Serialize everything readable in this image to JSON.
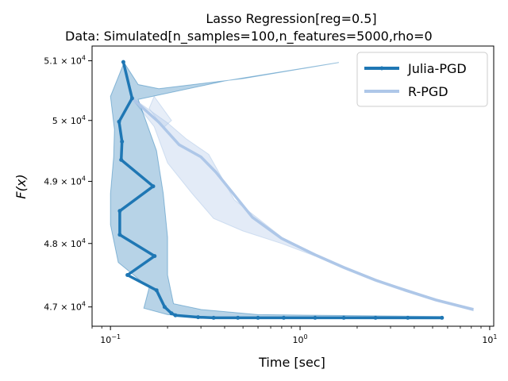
{
  "chart_data": {
    "type": "line",
    "title": "Lasso Regression[reg=0.5]",
    "subtitle": "Data: Simulated[n_samples=100,n_features=5000,rho=0",
    "xlabel": "Time [sec]",
    "ylabel": "F(x)",
    "xscale": "log",
    "yscale": "log",
    "xlim": [
      0.08,
      10.5
    ],
    "ylim": [
      46700,
      51250
    ],
    "x_ticks": [
      {
        "value": 0.1,
        "base": "10",
        "exp": "−1"
      },
      {
        "value": 1,
        "base": "10",
        "exp": "0"
      },
      {
        "value": 10,
        "base": "10",
        "exp": "1"
      }
    ],
    "y_ticks": [
      {
        "value": 47000,
        "mant": "4.7",
        "exp": "4"
      },
      {
        "value": 48000,
        "mant": "4.8",
        "exp": "4"
      },
      {
        "value": 49000,
        "mant": "4.9",
        "exp": "4"
      },
      {
        "value": 50000,
        "mant": "5",
        "exp": "4"
      },
      {
        "value": 51000,
        "mant": "5.1",
        "exp": "4"
      }
    ],
    "legend_position": "top-right",
    "grid": false,
    "series": [
      {
        "name": "Julia-PGD",
        "color": "#1f77b4",
        "x": [
          0.117,
          0.13,
          0.111,
          0.115,
          0.114,
          0.168,
          0.112,
          0.112,
          0.171,
          0.123,
          0.175,
          0.193,
          0.21,
          0.22,
          0.29,
          0.35,
          0.47,
          0.6,
          0.82,
          1.2,
          1.7,
          2.5,
          3.7,
          5.6
        ],
        "y": [
          50980,
          50370,
          49980,
          49650,
          49350,
          48920,
          48520,
          48140,
          47800,
          47500,
          47260,
          47000,
          46900,
          46870,
          46840,
          46830,
          46830,
          46830,
          46830,
          46830,
          46830,
          46830,
          46830,
          46830
        ],
        "band_upper": [
          {
            "x": 0.118,
            "y": 50970
          },
          {
            "x": 0.14,
            "y": 50600
          },
          {
            "x": 0.18,
            "y": 50530
          },
          {
            "x": 0.5,
            "y": 50700
          },
          {
            "x": 1.6,
            "y": 50970
          },
          {
            "x": 0.4,
            "y": 50660
          },
          {
            "x": 0.14,
            "y": 50350
          },
          {
            "x": 0.175,
            "y": 49500
          },
          {
            "x": 0.19,
            "y": 48800
          },
          {
            "x": 0.2,
            "y": 48100
          },
          {
            "x": 0.2,
            "y": 47500
          },
          {
            "x": 0.215,
            "y": 47050
          },
          {
            "x": 0.3,
            "y": 46960
          },
          {
            "x": 0.6,
            "y": 46880
          },
          {
            "x": 5.6,
            "y": 46850
          }
        ],
        "band_lower": [
          {
            "x": 0.118,
            "y": 50970
          },
          {
            "x": 0.1,
            "y": 50400
          },
          {
            "x": 0.105,
            "y": 49850
          },
          {
            "x": 0.104,
            "y": 49400
          },
          {
            "x": 0.1,
            "y": 48800
          },
          {
            "x": 0.1,
            "y": 48300
          },
          {
            "x": 0.11,
            "y": 47700
          },
          {
            "x": 0.16,
            "y": 47300
          },
          {
            "x": 0.15,
            "y": 46980
          },
          {
            "x": 0.2,
            "y": 46880
          },
          {
            "x": 0.5,
            "y": 46820
          },
          {
            "x": 5.6,
            "y": 46815
          }
        ]
      },
      {
        "name": "R-PGD",
        "color": "#aec7e8",
        "x": [
          0.13,
          0.18,
          0.23,
          0.3,
          0.36,
          0.56,
          0.8,
          1.2,
          1.7,
          2.5,
          3.6,
          5.2,
          8.2
        ],
        "y": [
          50370,
          49970,
          49600,
          49400,
          49150,
          48420,
          48080,
          47820,
          47620,
          47420,
          47260,
          47110,
          46960
        ],
        "band_upper": [
          {
            "x": 0.13,
            "y": 50380
          },
          {
            "x": 0.2,
            "y": 49960
          },
          {
            "x": 0.25,
            "y": 49700
          },
          {
            "x": 0.33,
            "y": 49440
          },
          {
            "x": 0.45,
            "y": 48700
          },
          {
            "x": 0.6,
            "y": 48400
          },
          {
            "x": 0.8,
            "y": 48100
          },
          {
            "x": 1.2,
            "y": 47830
          },
          {
            "x": 1.7,
            "y": 47630
          },
          {
            "x": 2.5,
            "y": 47430
          },
          {
            "x": 3.6,
            "y": 47280
          },
          {
            "x": 5.2,
            "y": 47120
          },
          {
            "x": 8.2,
            "y": 46980
          }
        ],
        "band_lower": [
          {
            "x": 0.13,
            "y": 50360
          },
          {
            "x": 0.17,
            "y": 49900
          },
          {
            "x": 0.2,
            "y": 49300
          },
          {
            "x": 0.27,
            "y": 48800
          },
          {
            "x": 0.35,
            "y": 48400
          },
          {
            "x": 0.5,
            "y": 48200
          },
          {
            "x": 0.8,
            "y": 48000
          },
          {
            "x": 1.2,
            "y": 47800
          },
          {
            "x": 1.7,
            "y": 47600
          },
          {
            "x": 2.5,
            "y": 47400
          },
          {
            "x": 3.6,
            "y": 47240
          },
          {
            "x": 5.2,
            "y": 47090
          },
          {
            "x": 8.2,
            "y": 46940
          }
        ]
      }
    ],
    "annotations": {
      "r_pgd_spike_band": [
        {
          "x": 0.17,
          "y": 50400
        },
        {
          "x": 0.21,
          "y": 50000
        },
        {
          "x": 0.19,
          "y": 49880
        },
        {
          "x": 0.16,
          "y": 50200
        }
      ]
    }
  }
}
